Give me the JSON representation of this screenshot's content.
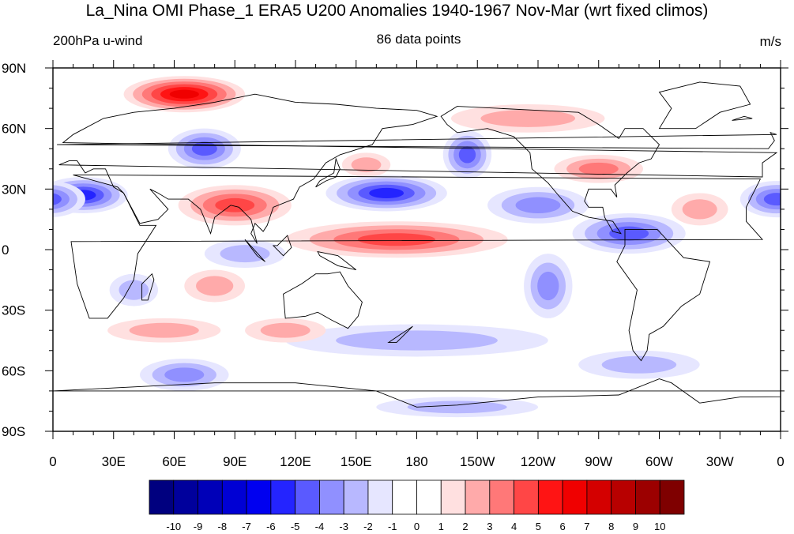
{
  "title": "La_Nina OMI Phase_1 ERA5 U200 Anomalies 1940-1967 Nov-Mar (wrt fixed climos)",
  "left_subtitle": "200hPa u-wind",
  "center_subtitle": "86 data points",
  "right_subtitle": "m/s",
  "axes": {
    "lat_ticks": [
      "90N",
      "60N",
      "30N",
      "0",
      "30S",
      "60S",
      "90S"
    ],
    "lon_ticks": [
      "0",
      "30E",
      "60E",
      "90E",
      "120E",
      "150E",
      "180",
      "150W",
      "120W",
      "90W",
      "60W",
      "30W",
      "0"
    ]
  },
  "colorbar": {
    "labels": [
      "-10",
      "-9",
      "-8",
      "-7",
      "-6",
      "-5",
      "-4",
      "-3",
      "-2",
      "-1",
      "0",
      "1",
      "2",
      "3",
      "4",
      "5",
      "6",
      "7",
      "8",
      "9",
      "10"
    ],
    "colors": [
      "#00007f",
      "#00009c",
      "#0000b8",
      "#0000d4",
      "#0000f0",
      "#2424ff",
      "#5a5aff",
      "#9090ff",
      "#b8b8ff",
      "#e6e6ff",
      "#ffffff",
      "#ffffff",
      "#ffe0e0",
      "#ffaaaa",
      "#ff7878",
      "#ff4646",
      "#ff1414",
      "#f00000",
      "#d40000",
      "#b80000",
      "#9c0000",
      "#7f0000"
    ]
  },
  "anomaly_features": [
    {
      "sign": "positive",
      "level": 6,
      "lon": 65,
      "lat": 77,
      "sx": 30,
      "sy": 9
    },
    {
      "sign": "negative",
      "level": 5,
      "lon": 165,
      "lat": 28,
      "sx": 30,
      "sy": 9
    },
    {
      "sign": "negative",
      "level": 5,
      "lon": 15,
      "lat": 27,
      "sx": 22,
      "sy": 9
    },
    {
      "sign": "negative",
      "level": 4,
      "lon": 358,
      "lat": 25,
      "sx": 18,
      "sy": 9
    },
    {
      "sign": "negative",
      "level": 4,
      "lon": 75,
      "lat": 50,
      "sx": 18,
      "sy": 10
    },
    {
      "sign": "negative",
      "level": 4,
      "lon": 205,
      "lat": 47,
      "sx": 12,
      "sy": 12
    },
    {
      "sign": "positive",
      "level": 4,
      "lon": 90,
      "lat": 22,
      "sx": 28,
      "sy": 10
    },
    {
      "sign": "positive",
      "level": 4,
      "lon": 170,
      "lat": 5,
      "sx": 55,
      "sy": 9
    },
    {
      "sign": "positive",
      "level": 3,
      "lon": 270,
      "lat": 40,
      "sx": 22,
      "sy": 7
    },
    {
      "sign": "negative",
      "level": 4,
      "lon": 285,
      "lat": 8,
      "sx": 28,
      "sy": 10
    },
    {
      "sign": "negative",
      "level": 3,
      "lon": 240,
      "lat": 22,
      "sx": 25,
      "sy": 9
    },
    {
      "sign": "negative",
      "level": 3,
      "lon": 245,
      "lat": -18,
      "sx": 12,
      "sy": 16
    },
    {
      "sign": "negative",
      "level": 3,
      "lon": 65,
      "lat": -62,
      "sx": 22,
      "sy": 8
    },
    {
      "sign": "negative",
      "level": 2,
      "lon": 180,
      "lat": -45,
      "sx": 65,
      "sy": 8
    },
    {
      "sign": "negative",
      "level": 2,
      "lon": 290,
      "lat": -57,
      "sx": 30,
      "sy": 7
    },
    {
      "sign": "negative",
      "level": 2,
      "lon": 200,
      "lat": -78,
      "sx": 40,
      "sy": 5
    },
    {
      "sign": "positive",
      "level": 2,
      "lon": 55,
      "lat": -40,
      "sx": 28,
      "sy": 6
    },
    {
      "sign": "positive",
      "level": 2,
      "lon": 80,
      "lat": -18,
      "sx": 15,
      "sy": 8
    },
    {
      "sign": "positive",
      "level": 2,
      "lon": 235,
      "lat": 65,
      "sx": 38,
      "sy": 7
    },
    {
      "sign": "positive",
      "level": 2,
      "lon": 115,
      "lat": -40,
      "sx": 20,
      "sy": 6
    },
    {
      "sign": "positive",
      "level": 2,
      "lon": 320,
      "lat": 20,
      "sx": 14,
      "sy": 8
    },
    {
      "sign": "negative",
      "level": 2,
      "lon": 95,
      "lat": -2,
      "sx": 20,
      "sy": 7
    },
    {
      "sign": "negative",
      "level": 2,
      "lon": 40,
      "lat": -20,
      "sx": 12,
      "sy": 8
    },
    {
      "sign": "positive",
      "level": 2,
      "lon": 155,
      "lat": 42,
      "sx": 12,
      "sy": 6
    }
  ]
}
